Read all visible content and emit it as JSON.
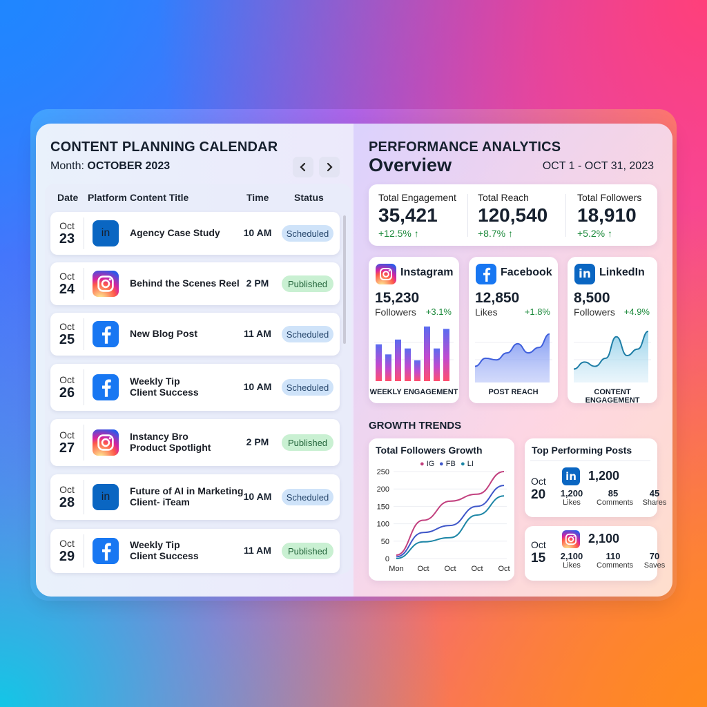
{
  "calendar": {
    "title": "CONTENT PLANNING CALENDAR",
    "month_label": "Month:",
    "month_value": "OCTOBER 2023",
    "prev_icon": "chevron-left-icon",
    "next_icon": "chevron-right-icon",
    "columns": [
      "Date",
      "Platform",
      "Content Title",
      "Time",
      "Status"
    ],
    "rows": [
      {
        "month": "Oct",
        "day": "23",
        "platform": "linkedin",
        "title_line1": "Agency Case Study",
        "title_line2": "",
        "time": "10 AM",
        "status": "Scheduled"
      },
      {
        "month": "Oct",
        "day": "24",
        "platform": "instagram",
        "title_line1": "Behind the Scenes Reel",
        "title_line2": "",
        "time": "2 PM",
        "status": "Published"
      },
      {
        "month": "Oct",
        "day": "25",
        "platform": "facebook",
        "title_line1": "New Blog Post",
        "title_line2": "",
        "time": "11 AM",
        "status": "Scheduled"
      },
      {
        "month": "Oct",
        "day": "26",
        "platform": "facebook",
        "title_line1": "Weekly Tip",
        "title_line2": "Client Success",
        "time": "10 AM",
        "status": "Scheduled"
      },
      {
        "month": "Oct",
        "day": "27",
        "platform": "instagram",
        "title_line1": "Instancy Bro",
        "title_line2": "Product Spotlight",
        "time": "2 PM",
        "status": "Published"
      },
      {
        "month": "Oct",
        "day": "28",
        "platform": "linkedin",
        "title_line1": "Future of AI in Marketing",
        "title_line2": "Client- iTeam",
        "time": "10 AM",
        "status": "Scheduled"
      },
      {
        "month": "Oct",
        "day": "29",
        "platform": "facebook",
        "title_line1": "Weekly Tip",
        "title_line2": "Client Success",
        "time": "11 AM",
        "status": "Published"
      }
    ]
  },
  "analytics": {
    "title": "PERFORMANCE ANALYTICS",
    "subtitle": "Overview",
    "date_range": "OCT 1 - OCT 31, 2023",
    "kpis": [
      {
        "label": "Total Engagement",
        "value": "35,421",
        "change": "+12.5% ↑"
      },
      {
        "label": "Total Reach",
        "value": "120,540",
        "change": "+8.7% ↑"
      },
      {
        "label": "Total Followers",
        "value": "18,910",
        "change": "+5.2% ↑"
      }
    ],
    "platforms": [
      {
        "name": "Instagram",
        "value": "15,230",
        "metric": "Followers",
        "change": "+3.1%",
        "caption": "WEEKLY ENGAGEMENT"
      },
      {
        "name": "Facebook",
        "value": "12,850",
        "metric": "Likes",
        "change": "+1.8%",
        "caption": "POST REACH"
      },
      {
        "name": "LinkedIn",
        "value": "8,500",
        "metric": "Followers",
        "change": "+4.9%",
        "caption": "CONTENT ENGAGEMENT"
      }
    ],
    "growth_title": "GROWTH TRENDS",
    "top_posts": {
      "title": "Top Performing Posts",
      "posts": [
        {
          "month": "Oct",
          "day": "20",
          "platform": "linkedin",
          "headline": "1,200",
          "stats": [
            {
              "value": "1,200",
              "label": "Likes"
            },
            {
              "value": "85",
              "label": "Comments"
            },
            {
              "value": "45",
              "label": "Shares"
            }
          ]
        },
        {
          "month": "Oct",
          "day": "15",
          "platform": "instagram",
          "headline": "2,100",
          "stats": [
            {
              "value": "2,100",
              "label": "Likes"
            },
            {
              "value": "110",
              "label": "Comments"
            },
            {
              "value": "70",
              "label": "Saves"
            }
          ]
        }
      ]
    }
  },
  "colors": {
    "linkedin": "#0a66c2",
    "facebook": "#1877f2",
    "ig_line": "#c2417f",
    "fb_line": "#3f57c9",
    "li_line": "#1d86a6",
    "positive": "#1d8a3c"
  },
  "chart_data": [
    {
      "type": "bar",
      "title": "WEEKLY ENGAGEMENT",
      "values": [
        0.62,
        0.45,
        0.7,
        0.55,
        0.35,
        0.92,
        0.55,
        0.88
      ]
    },
    {
      "type": "area",
      "title": "POST REACH",
      "values": [
        0.3,
        0.45,
        0.42,
        0.55,
        0.72,
        0.55,
        0.65,
        0.9
      ]
    },
    {
      "type": "area",
      "title": "CONTENT ENGAGEMENT",
      "values": [
        0.25,
        0.38,
        0.3,
        0.45,
        0.85,
        0.5,
        0.62,
        0.95
      ]
    },
    {
      "type": "line",
      "title": "Total Followers Growth",
      "x": [
        "Mon",
        "Oct",
        "Oct",
        "Oct",
        "Oct"
      ],
      "ylim": [
        0,
        250
      ],
      "yticks": [
        0,
        50,
        100,
        150,
        200,
        250
      ],
      "series": [
        {
          "name": "IG",
          "values": [
            10,
            110,
            165,
            185,
            250
          ]
        },
        {
          "name": "FB",
          "values": [
            5,
            75,
            95,
            150,
            210
          ]
        },
        {
          "name": "LI",
          "values": [
            0,
            48,
            60,
            125,
            180
          ]
        }
      ]
    }
  ]
}
